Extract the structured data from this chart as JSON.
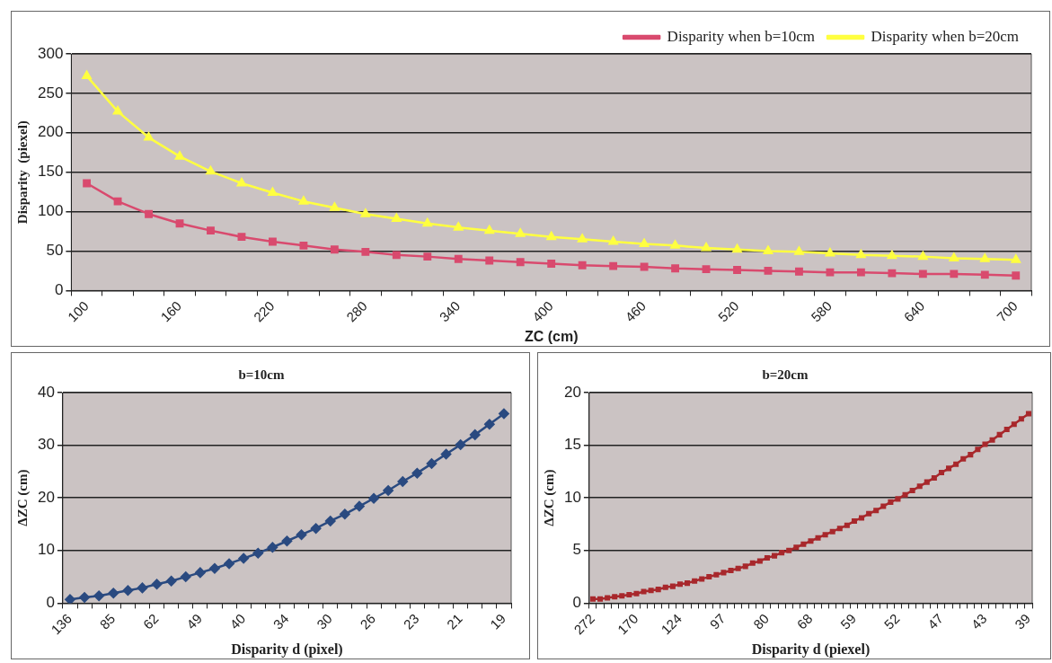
{
  "chart_data": [
    {
      "type": "line",
      "ylabel": "Disparity  (piexel)",
      "xlabel": "ZC (cm)",
      "categories": [
        "100",
        null,
        null,
        "160",
        null,
        null,
        "220",
        null,
        null,
        "280",
        null,
        null,
        "340",
        null,
        null,
        "400",
        null,
        null,
        "460",
        null,
        null,
        "520",
        null,
        null,
        "580",
        null,
        null,
        "640",
        null,
        null,
        "700"
      ],
      "series": [
        {
          "name": "Disparity when b=10cm",
          "color": "#d94a6e",
          "marker": "square",
          "values": [
            136,
            113,
            97,
            85,
            76,
            68,
            62,
            57,
            52,
            49,
            45,
            43,
            40,
            38,
            36,
            34,
            32,
            31,
            30,
            28,
            27,
            26,
            25,
            24,
            23,
            23,
            22,
            21,
            21,
            20,
            19
          ]
        },
        {
          "name": "Disparity when b=20cm",
          "color": "#ffff40",
          "marker": "triangle",
          "values": [
            272,
            227,
            194,
            170,
            151,
            136,
            124,
            113,
            105,
            97,
            91,
            85,
            80,
            76,
            72,
            68,
            65,
            62,
            59,
            57,
            54,
            52,
            50,
            49,
            47,
            45,
            44,
            43,
            41,
            40,
            39
          ]
        }
      ],
      "ylim": [
        0,
        300
      ],
      "yticks": [
        0,
        50,
        100,
        150,
        200,
        250,
        300
      ],
      "grid": "y",
      "legend": "top right"
    },
    {
      "type": "line",
      "title": "b=10cm",
      "ylabel": "ΔZC (cm)",
      "xlabel": "Disparity d (pixel)",
      "categories": [
        "136",
        null,
        null,
        "85",
        null,
        null,
        "62",
        null,
        null,
        "49",
        null,
        null,
        "40",
        null,
        null,
        "34",
        null,
        null,
        "30",
        null,
        null,
        "26",
        null,
        null,
        "23",
        null,
        null,
        "21",
        null,
        null,
        "19"
      ],
      "series": [
        {
          "color": "#2a4a80",
          "marker": "diamond",
          "values": [
            0.7,
            1.1,
            1.4,
            1.9,
            2.4,
            2.9,
            3.6,
            4.2,
            5.0,
            5.8,
            6.6,
            7.5,
            8.5,
            9.5,
            10.6,
            11.8,
            13.0,
            14.2,
            15.6,
            16.9,
            18.4,
            19.9,
            21.4,
            23.1,
            24.7,
            26.5,
            28.3,
            30.1,
            32.0,
            34.0,
            36.0
          ]
        }
      ],
      "ylim": [
        0,
        40
      ],
      "yticks": [
        0,
        10,
        20,
        30,
        40
      ],
      "grid": "y"
    },
    {
      "type": "line",
      "title": "b=20cm",
      "ylabel": "ΔZC (cm)",
      "xlabel": "Disparity d (piexel)",
      "categories": [
        "272",
        null,
        null,
        null,
        null,
        null,
        "170",
        null,
        null,
        null,
        null,
        null,
        "124",
        null,
        null,
        null,
        null,
        null,
        "97",
        null,
        null,
        null,
        null,
        null,
        "80",
        null,
        null,
        null,
        null,
        null,
        "68",
        null,
        null,
        null,
        null,
        null,
        "59",
        null,
        null,
        null,
        null,
        null,
        "52",
        null,
        null,
        null,
        null,
        null,
        "47",
        null,
        null,
        null,
        null,
        null,
        "43",
        null,
        null,
        null,
        null,
        null,
        "39"
      ],
      "series": [
        {
          "color": "#a8282c",
          "marker": "square",
          "values": [
            0.4,
            0.4,
            0.5,
            0.6,
            0.7,
            0.8,
            0.9,
            1.1,
            1.2,
            1.3,
            1.5,
            1.6,
            1.8,
            1.9,
            2.1,
            2.3,
            2.5,
            2.7,
            2.9,
            3.1,
            3.3,
            3.5,
            3.8,
            4.0,
            4.3,
            4.5,
            4.8,
            5.0,
            5.3,
            5.6,
            5.9,
            6.2,
            6.5,
            6.8,
            7.1,
            7.4,
            7.8,
            8.1,
            8.5,
            8.8,
            9.2,
            9.6,
            9.9,
            10.3,
            10.7,
            11.1,
            11.5,
            11.9,
            12.4,
            12.8,
            13.2,
            13.7,
            14.1,
            14.6,
            15.1,
            15.5,
            16.0,
            16.5,
            17.0,
            17.5,
            18.0
          ]
        }
      ],
      "ylim": [
        0,
        20
      ],
      "yticks": [
        0,
        5,
        10,
        15,
        20
      ],
      "grid": "y"
    }
  ]
}
